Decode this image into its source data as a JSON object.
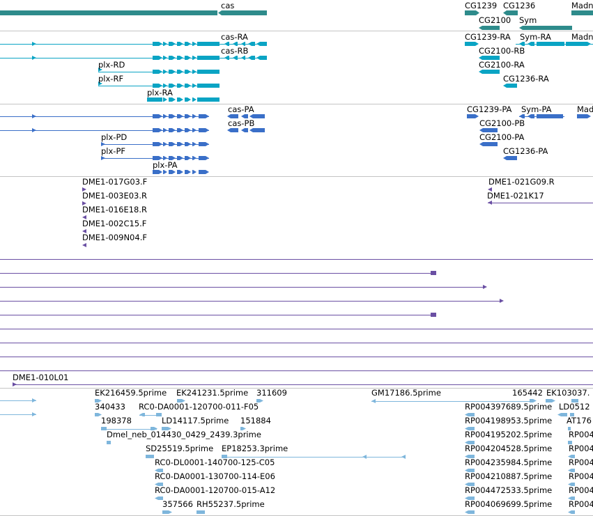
{
  "colors": {
    "gene": "#2e8b8b",
    "flybase_transcript": "#0aa4c4",
    "protein": "#3a6fc8",
    "clone": "#6a4fa3",
    "est": "#7eb6dc",
    "separator": "#c4c4c4",
    "text": "#000000"
  },
  "tracks": {
    "genes": {
      "labels": [
        "cas",
        "CG1239",
        "CG1236",
        "Madn",
        "CG2100",
        "Sym"
      ]
    },
    "transcripts": {
      "labels": [
        "cas-RA",
        "CG1239-RA",
        "Sym-RA",
        "Madn",
        "cas-RB",
        "CG2100-RB",
        "plx-RD",
        "CG2100-RA",
        "plx-RF",
        "CG1236-RA",
        "plx-RA"
      ]
    },
    "proteins": {
      "labels": [
        "cas-PA",
        "CG1239-PA",
        "Sym-PA",
        "Mad",
        "cas-PB",
        "CG2100-PB",
        "plx-PD",
        "CG2100-PA",
        "plx-PF",
        "CG1236-PA",
        "plx-PA"
      ]
    },
    "clones": {
      "labels": [
        "DME1-017G03.F",
        "DME1-021G09.R",
        "DME1-003E03.R",
        "DME1-021K17",
        "DME1-016E18.R",
        "DME1-002C15.F",
        "DME1-009N04.F"
      ]
    },
    "clone_extended": {
      "labels": [
        "DME1-010L01"
      ]
    },
    "ests": {
      "labels": [
        "EK216459.5prime",
        "EK241231.5prime",
        "311609",
        "GM17186.5prime",
        "165442",
        "EK103037.",
        "340433",
        "RC0-DA0001-120700-011-F05",
        "RP004397689.5prime",
        "LD0512",
        "198378",
        "LD14117.5prime",
        "151884",
        "RP004198953.5prime",
        "AT176",
        "Dmel_neb_014430_0429_2439.3prime",
        "RP004195202.5prime",
        "RP004",
        "SD25519.5prime",
        "EP18253.3prime",
        "RP004204528.5prime",
        "RP004",
        "RC0-DL0001-140700-125-C05",
        "RP004235984.5prime",
        "RP004",
        "RC0-DA0001-130700-114-E06",
        "RP004210887.5prime",
        "RP004",
        "RC0-DA0001-120700-015-A12",
        "RP004472533.5prime",
        "RP004",
        "357566",
        "RH55237.5prime",
        "RP004069699.5prime",
        "RP004"
      ]
    }
  }
}
